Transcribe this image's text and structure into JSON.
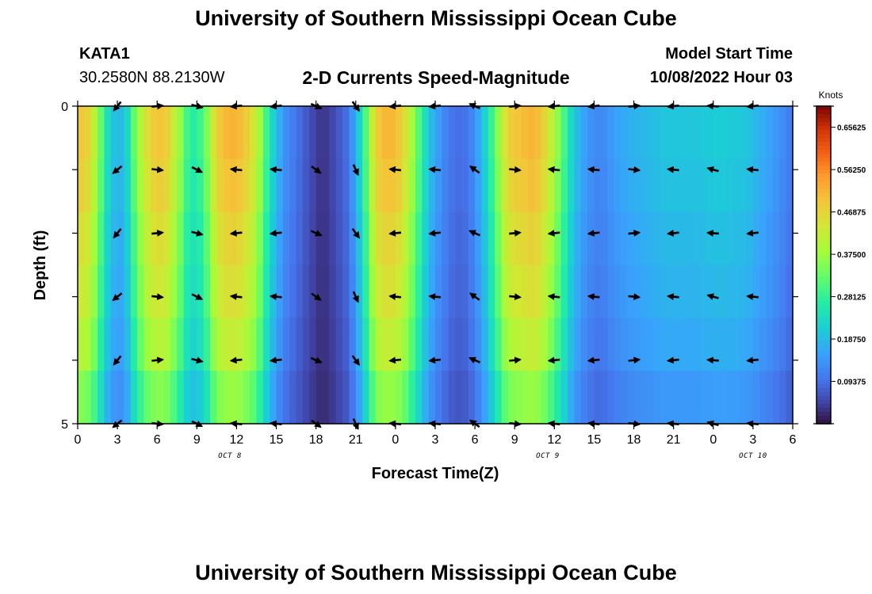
{
  "page": {
    "title": "University of Southern Mississippi Ocean Cube",
    "bottom_title": "University of Southern Mississippi Ocean Cube",
    "station": "KATA1",
    "coords": "30.2580N  88.2130W",
    "model_label": "Model Start Time",
    "model_time": "10/08/2022 Hour 03"
  },
  "chart_data": {
    "type": "heatmap",
    "title": "2-D Currents Speed-Magnitude",
    "xlabel": "Forecast Time(Z)",
    "ylabel": "Depth (ft)",
    "ylim": [
      0,
      5
    ],
    "y_tick_labels": [
      "0",
      "5"
    ],
    "hour_offset_range": [
      0,
      54
    ],
    "x_tick_labels": [
      "0",
      "3",
      "6",
      "9",
      "12",
      "15",
      "18",
      "21",
      "0",
      "3",
      "6",
      "9",
      "12",
      "15",
      "18",
      "21",
      "0",
      "3",
      "6"
    ],
    "date_labels": [
      {
        "text": "OCT 8",
        "hour_offset": 11.5
      },
      {
        "text": "OCT 9",
        "hour_offset": 35.5
      },
      {
        "text": "OCT 10",
        "hour_offset": 51
      }
    ],
    "colorbar": {
      "label": "Knots",
      "min": 0.0,
      "max": 0.703,
      "tick_labels": [
        "0.65625",
        "0.56250",
        "0.46875",
        "0.37500",
        "0.28125",
        "0.18750",
        "0.09375"
      ],
      "tick_values": [
        0.65625,
        0.5625,
        0.46875,
        0.375,
        0.28125,
        0.1875,
        0.09375
      ]
    },
    "speed_anchors": [
      [
        0,
        0.5
      ],
      [
        1,
        0.46
      ],
      [
        2,
        0.28
      ],
      [
        2.5,
        0.2
      ],
      [
        3.5,
        0.18
      ],
      [
        4.5,
        0.37
      ],
      [
        5.5,
        0.48
      ],
      [
        6.5,
        0.5
      ],
      [
        7.5,
        0.4
      ],
      [
        8.5,
        0.26
      ],
      [
        9.5,
        0.3
      ],
      [
        10.5,
        0.48
      ],
      [
        11.5,
        0.52
      ],
      [
        12.5,
        0.5
      ],
      [
        13.5,
        0.42
      ],
      [
        14.5,
        0.25
      ],
      [
        15.5,
        0.14
      ],
      [
        16.5,
        0.1
      ],
      [
        17.5,
        0.06
      ],
      [
        18.5,
        0.03
      ],
      [
        19.5,
        0.06
      ],
      [
        20.5,
        0.1
      ],
      [
        21.5,
        0.25
      ],
      [
        22.5,
        0.48
      ],
      [
        23.5,
        0.52
      ],
      [
        24.5,
        0.48
      ],
      [
        25.5,
        0.35
      ],
      [
        26.5,
        0.2
      ],
      [
        27.5,
        0.13
      ],
      [
        28.5,
        0.09
      ],
      [
        29.5,
        0.1
      ],
      [
        30.5,
        0.18
      ],
      [
        31.5,
        0.32
      ],
      [
        32.5,
        0.48
      ],
      [
        33.5,
        0.5
      ],
      [
        34.5,
        0.52
      ],
      [
        35.5,
        0.45
      ],
      [
        36.5,
        0.33
      ],
      [
        37.5,
        0.2
      ],
      [
        38.5,
        0.14
      ],
      [
        39.5,
        0.12
      ],
      [
        40.5,
        0.15
      ],
      [
        41.5,
        0.17
      ],
      [
        42.5,
        0.18
      ],
      [
        44.5,
        0.2
      ],
      [
        46.5,
        0.2
      ],
      [
        48.5,
        0.21
      ],
      [
        50.5,
        0.2
      ],
      [
        52.5,
        0.15
      ],
      [
        53.5,
        0.12
      ],
      [
        54,
        0.1
      ]
    ],
    "depth_factors": [
      1.0,
      0.97,
      0.92,
      0.88,
      0.82,
      0.72
    ],
    "arrows": {
      "depths": [
        0,
        1,
        2,
        3,
        4,
        5
      ],
      "hour_offsets": [
        3,
        6,
        9,
        12,
        15,
        18,
        21,
        24,
        27,
        30,
        33,
        36,
        39,
        42,
        45,
        48,
        51
      ],
      "direction_deg_by_hour": [
        [
          3,
          135
        ],
        [
          6,
          0
        ],
        [
          9,
          20
        ],
        [
          12,
          180
        ],
        [
          15,
          180
        ],
        [
          18,
          30
        ],
        [
          21,
          60
        ],
        [
          24,
          180
        ],
        [
          27,
          180
        ],
        [
          30,
          210
        ],
        [
          33,
          0
        ],
        [
          36,
          180
        ],
        [
          39,
          180
        ],
        [
          42,
          0
        ],
        [
          45,
          180
        ],
        [
          48,
          190
        ],
        [
          51,
          180
        ]
      ]
    }
  }
}
